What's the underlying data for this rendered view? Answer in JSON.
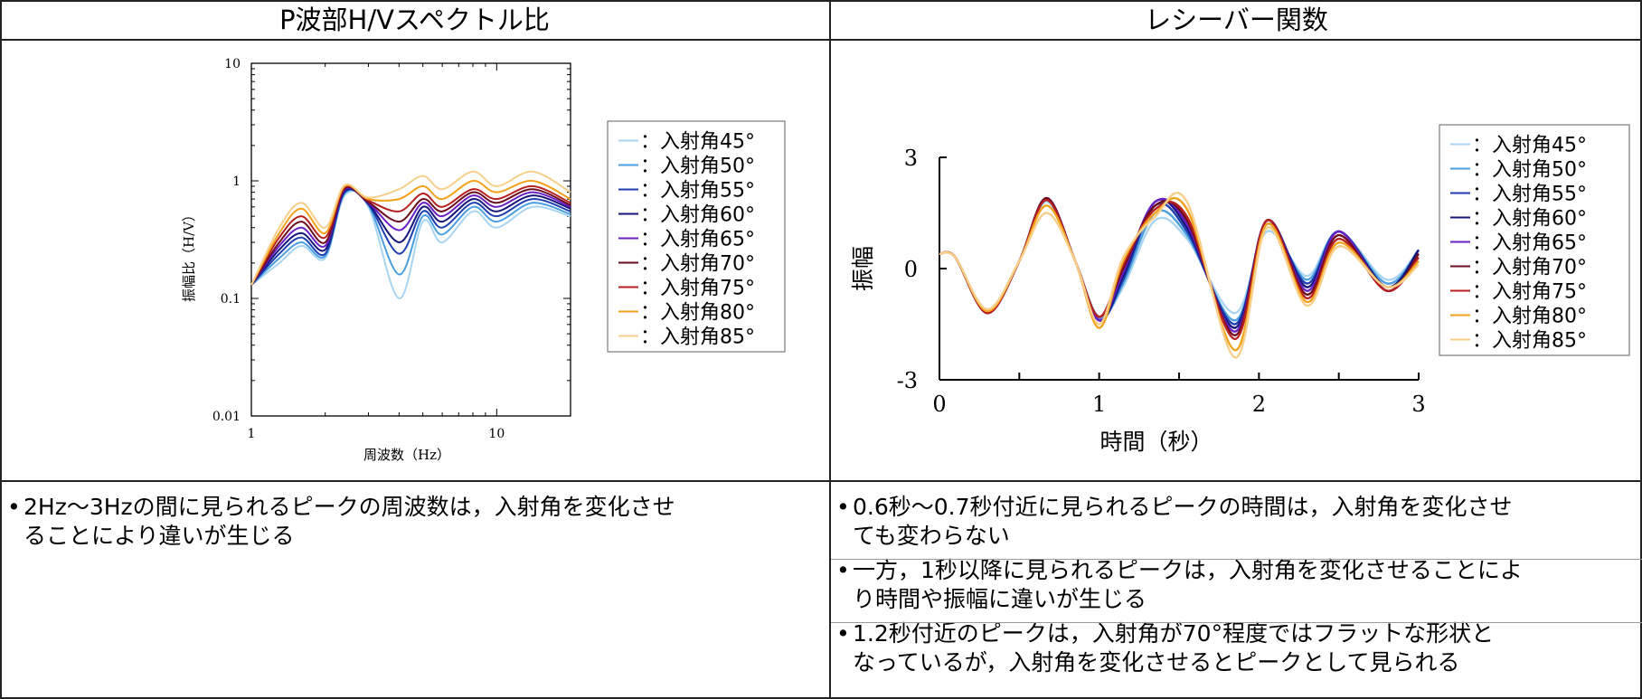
{
  "headers": {
    "left": "P波部H/Vスペクトル比",
    "right": "レシーバー関数"
  },
  "colors": [
    "#a9d4f2",
    "#4a9fe0",
    "#1f3fb0",
    "#15157a",
    "#6a1fc7",
    "#6b0d1e",
    "#b81f1f",
    "#f2a21a",
    "#f8cf8a"
  ],
  "chart_data": [
    {
      "type": "line",
      "title": "",
      "xlabel": "周波数（Hz）",
      "ylabel": "振幅比（H/V）",
      "xscale": "log",
      "yscale": "log",
      "xlim": [
        1,
        20
      ],
      "ylim": [
        0.01,
        10
      ],
      "xticks": [
        "1",
        "10"
      ],
      "yticks": [
        "10",
        "1",
        "0.1",
        "0.01"
      ],
      "legend_position": "right",
      "series": [
        {
          "name": "：入射角45°",
          "x": [
            1,
            1.3,
            1.6,
            2.0,
            2.4,
            3.0,
            4.0,
            5.0,
            6.0,
            8.0,
            10,
            14,
            20
          ],
          "y": [
            0.13,
            0.2,
            0.28,
            0.22,
            0.75,
            0.6,
            0.1,
            0.45,
            0.3,
            0.55,
            0.4,
            0.6,
            0.5
          ]
        },
        {
          "name": "：入射角50°",
          "x": [
            1,
            1.3,
            1.6,
            2.0,
            2.4,
            3.0,
            4.0,
            5.0,
            6.0,
            8.0,
            10,
            14,
            20
          ],
          "y": [
            0.13,
            0.22,
            0.3,
            0.23,
            0.78,
            0.62,
            0.16,
            0.5,
            0.35,
            0.6,
            0.45,
            0.65,
            0.52
          ]
        },
        {
          "name": "：入射角55°",
          "x": [
            1,
            1.3,
            1.6,
            2.0,
            2.4,
            3.0,
            4.0,
            5.0,
            6.0,
            8.0,
            10,
            14,
            20
          ],
          "y": [
            0.13,
            0.24,
            0.33,
            0.24,
            0.8,
            0.63,
            0.24,
            0.55,
            0.4,
            0.65,
            0.5,
            0.7,
            0.55
          ]
        },
        {
          "name": "：入射角60°",
          "x": [
            1,
            1.3,
            1.6,
            2.0,
            2.4,
            3.0,
            4.0,
            5.0,
            6.0,
            8.0,
            10,
            14,
            20
          ],
          "y": [
            0.13,
            0.26,
            0.36,
            0.26,
            0.82,
            0.64,
            0.3,
            0.6,
            0.45,
            0.7,
            0.55,
            0.75,
            0.58
          ]
        },
        {
          "name": "：入射角65°",
          "x": [
            1,
            1.3,
            1.6,
            2.0,
            2.4,
            3.0,
            4.0,
            5.0,
            6.0,
            8.0,
            10,
            14,
            20
          ],
          "y": [
            0.13,
            0.28,
            0.4,
            0.28,
            0.84,
            0.65,
            0.38,
            0.65,
            0.5,
            0.75,
            0.6,
            0.8,
            0.6
          ]
        },
        {
          "name": "：入射角70°",
          "x": [
            1,
            1.3,
            1.6,
            2.0,
            2.4,
            3.0,
            4.0,
            5.0,
            6.0,
            8.0,
            10,
            14,
            20
          ],
          "y": [
            0.13,
            0.3,
            0.45,
            0.3,
            0.86,
            0.66,
            0.45,
            0.7,
            0.55,
            0.8,
            0.65,
            0.85,
            0.62
          ]
        },
        {
          "name": "：入射角75°",
          "x": [
            1,
            1.3,
            1.6,
            2.0,
            2.4,
            3.0,
            4.0,
            5.0,
            6.0,
            8.0,
            10,
            14,
            20
          ],
          "y": [
            0.13,
            0.33,
            0.5,
            0.33,
            0.88,
            0.68,
            0.55,
            0.78,
            0.6,
            0.85,
            0.7,
            0.9,
            0.65
          ]
        },
        {
          "name": "：入射角80°",
          "x": [
            1,
            1.3,
            1.6,
            2.0,
            2.4,
            3.0,
            4.0,
            5.0,
            6.0,
            8.0,
            10,
            14,
            20
          ],
          "y": [
            0.13,
            0.36,
            0.58,
            0.36,
            0.9,
            0.7,
            0.7,
            0.9,
            0.7,
            1.0,
            0.8,
            1.0,
            0.7
          ]
        },
        {
          "name": "：入射角85°",
          "x": [
            1,
            1.3,
            1.6,
            2.0,
            2.4,
            3.0,
            4.0,
            5.0,
            6.0,
            8.0,
            10,
            14,
            20
          ],
          "y": [
            0.13,
            0.4,
            0.65,
            0.4,
            0.92,
            0.72,
            0.85,
            1.1,
            0.85,
            1.2,
            0.9,
            1.2,
            0.8
          ]
        }
      ]
    },
    {
      "type": "line",
      "title": "",
      "xlabel": "時間（秒）",
      "ylabel": "振幅",
      "xlim": [
        0,
        3
      ],
      "ylim": [
        -3,
        3
      ],
      "xticks": [
        "0",
        "1",
        "2",
        "3"
      ],
      "yticks": [
        "3",
        "0",
        "-3"
      ],
      "legend_position": "right",
      "series": [
        {
          "name": "：入射角45°",
          "x": [
            0,
            0.1,
            0.3,
            0.5,
            0.67,
            0.85,
            1.0,
            1.15,
            1.35,
            1.55,
            1.85,
            2.05,
            2.3,
            2.5,
            2.8,
            3.0
          ],
          "y": [
            0.4,
            0.3,
            -1.1,
            0.2,
            1.8,
            0.2,
            -1.3,
            -0.5,
            1.3,
            0.8,
            -1.2,
            1.0,
            -0.2,
            1.0,
            -0.3,
            0.5
          ]
        },
        {
          "name": "：入射角50°",
          "x": [
            0,
            0.1,
            0.3,
            0.5,
            0.67,
            0.85,
            1.0,
            1.15,
            1.35,
            1.55,
            1.85,
            2.05,
            2.3,
            2.5,
            2.8,
            3.0
          ],
          "y": [
            0.4,
            0.3,
            -1.15,
            0.2,
            1.85,
            0.2,
            -1.35,
            -0.4,
            1.5,
            0.9,
            -1.4,
            1.1,
            -0.3,
            1.0,
            -0.4,
            0.5
          ]
        },
        {
          "name": "：入射角55°",
          "x": [
            0,
            0.1,
            0.3,
            0.5,
            0.67,
            0.85,
            1.0,
            1.15,
            1.35,
            1.55,
            1.85,
            2.05,
            2.3,
            2.5,
            2.8,
            3.0
          ],
          "y": [
            0.4,
            0.3,
            -1.2,
            0.2,
            1.9,
            0.2,
            -1.4,
            -0.3,
            1.7,
            1.0,
            -1.5,
            1.2,
            -0.4,
            1.0,
            -0.5,
            0.5
          ]
        },
        {
          "name": "：入射角60°",
          "x": [
            0,
            0.1,
            0.3,
            0.5,
            0.67,
            0.85,
            1.0,
            1.15,
            1.35,
            1.55,
            1.85,
            2.05,
            2.3,
            2.5,
            2.8,
            3.0
          ],
          "y": [
            0.4,
            0.3,
            -1.2,
            0.2,
            1.9,
            0.2,
            -1.4,
            -0.2,
            1.8,
            1.1,
            -1.6,
            1.3,
            -0.5,
            1.0,
            -0.5,
            0.5
          ]
        },
        {
          "name": "：入射角65°",
          "x": [
            0,
            0.1,
            0.3,
            0.5,
            0.67,
            0.85,
            1.0,
            1.15,
            1.35,
            1.55,
            1.85,
            2.05,
            2.3,
            2.5,
            2.8,
            3.0
          ],
          "y": [
            0.4,
            0.3,
            -1.2,
            0.2,
            1.9,
            0.2,
            -1.4,
            -0.1,
            1.8,
            1.2,
            -1.7,
            1.3,
            -0.6,
            1.0,
            -0.6,
            0.4
          ]
        },
        {
          "name": "：入射角70°",
          "x": [
            0,
            0.1,
            0.3,
            0.5,
            0.67,
            0.85,
            1.0,
            1.15,
            1.35,
            1.55,
            1.85,
            2.05,
            2.3,
            2.5,
            2.8,
            3.0
          ],
          "y": [
            0.4,
            0.3,
            -1.2,
            0.2,
            1.9,
            0.2,
            -1.3,
            0.0,
            1.7,
            1.3,
            -1.8,
            1.3,
            -0.7,
            0.9,
            -0.6,
            0.4
          ]
        },
        {
          "name": "：入射角75°",
          "x": [
            0,
            0.1,
            0.3,
            0.5,
            0.67,
            0.85,
            1.0,
            1.15,
            1.35,
            1.55,
            1.85,
            2.05,
            2.3,
            2.5,
            2.8,
            3.0
          ],
          "y": [
            0.4,
            0.3,
            -1.2,
            0.2,
            1.85,
            0.2,
            -1.3,
            0.1,
            1.6,
            1.4,
            -1.9,
            1.3,
            -0.8,
            0.8,
            -0.6,
            0.3
          ]
        },
        {
          "name": "：入射角80°",
          "x": [
            0,
            0.1,
            0.3,
            0.5,
            0.67,
            0.85,
            1.0,
            1.15,
            1.35,
            1.55,
            1.85,
            2.05,
            2.3,
            2.5,
            2.8,
            3.0
          ],
          "y": [
            0.4,
            0.3,
            -1.15,
            0.2,
            1.7,
            0.2,
            -1.6,
            0.2,
            1.5,
            1.6,
            -2.2,
            1.2,
            -0.9,
            0.7,
            -0.5,
            0.2
          ]
        },
        {
          "name": "：入射角85°",
          "x": [
            0,
            0.1,
            0.3,
            0.5,
            0.67,
            0.85,
            1.0,
            1.15,
            1.35,
            1.55,
            1.85,
            2.05,
            2.3,
            2.5,
            2.8,
            3.0
          ],
          "y": [
            0.4,
            0.3,
            -1.1,
            0.2,
            1.5,
            0.2,
            -1.5,
            0.3,
            1.4,
            1.8,
            -2.4,
            1.1,
            -1.0,
            0.6,
            -0.5,
            0.1
          ]
        }
      ]
    }
  ],
  "notes_left": [
    "2Hz〜3Hzの間に見られるピークの周波数は，入射角を変化させ\nることにより違いが生じる"
  ],
  "notes_right": [
    "0.6秒〜0.7秒付近に見られるピークの時間は，入射角を変化させ\nても変わらない",
    "一方，1秒以降に見られるピークは，入射角を変化させることによ\nり時間や振幅に違いが生じる",
    "1.2秒付近のピークは，入射角が70°程度ではフラットな形状と\nなっているが，入射角を変化させるとピークとして見られる"
  ]
}
